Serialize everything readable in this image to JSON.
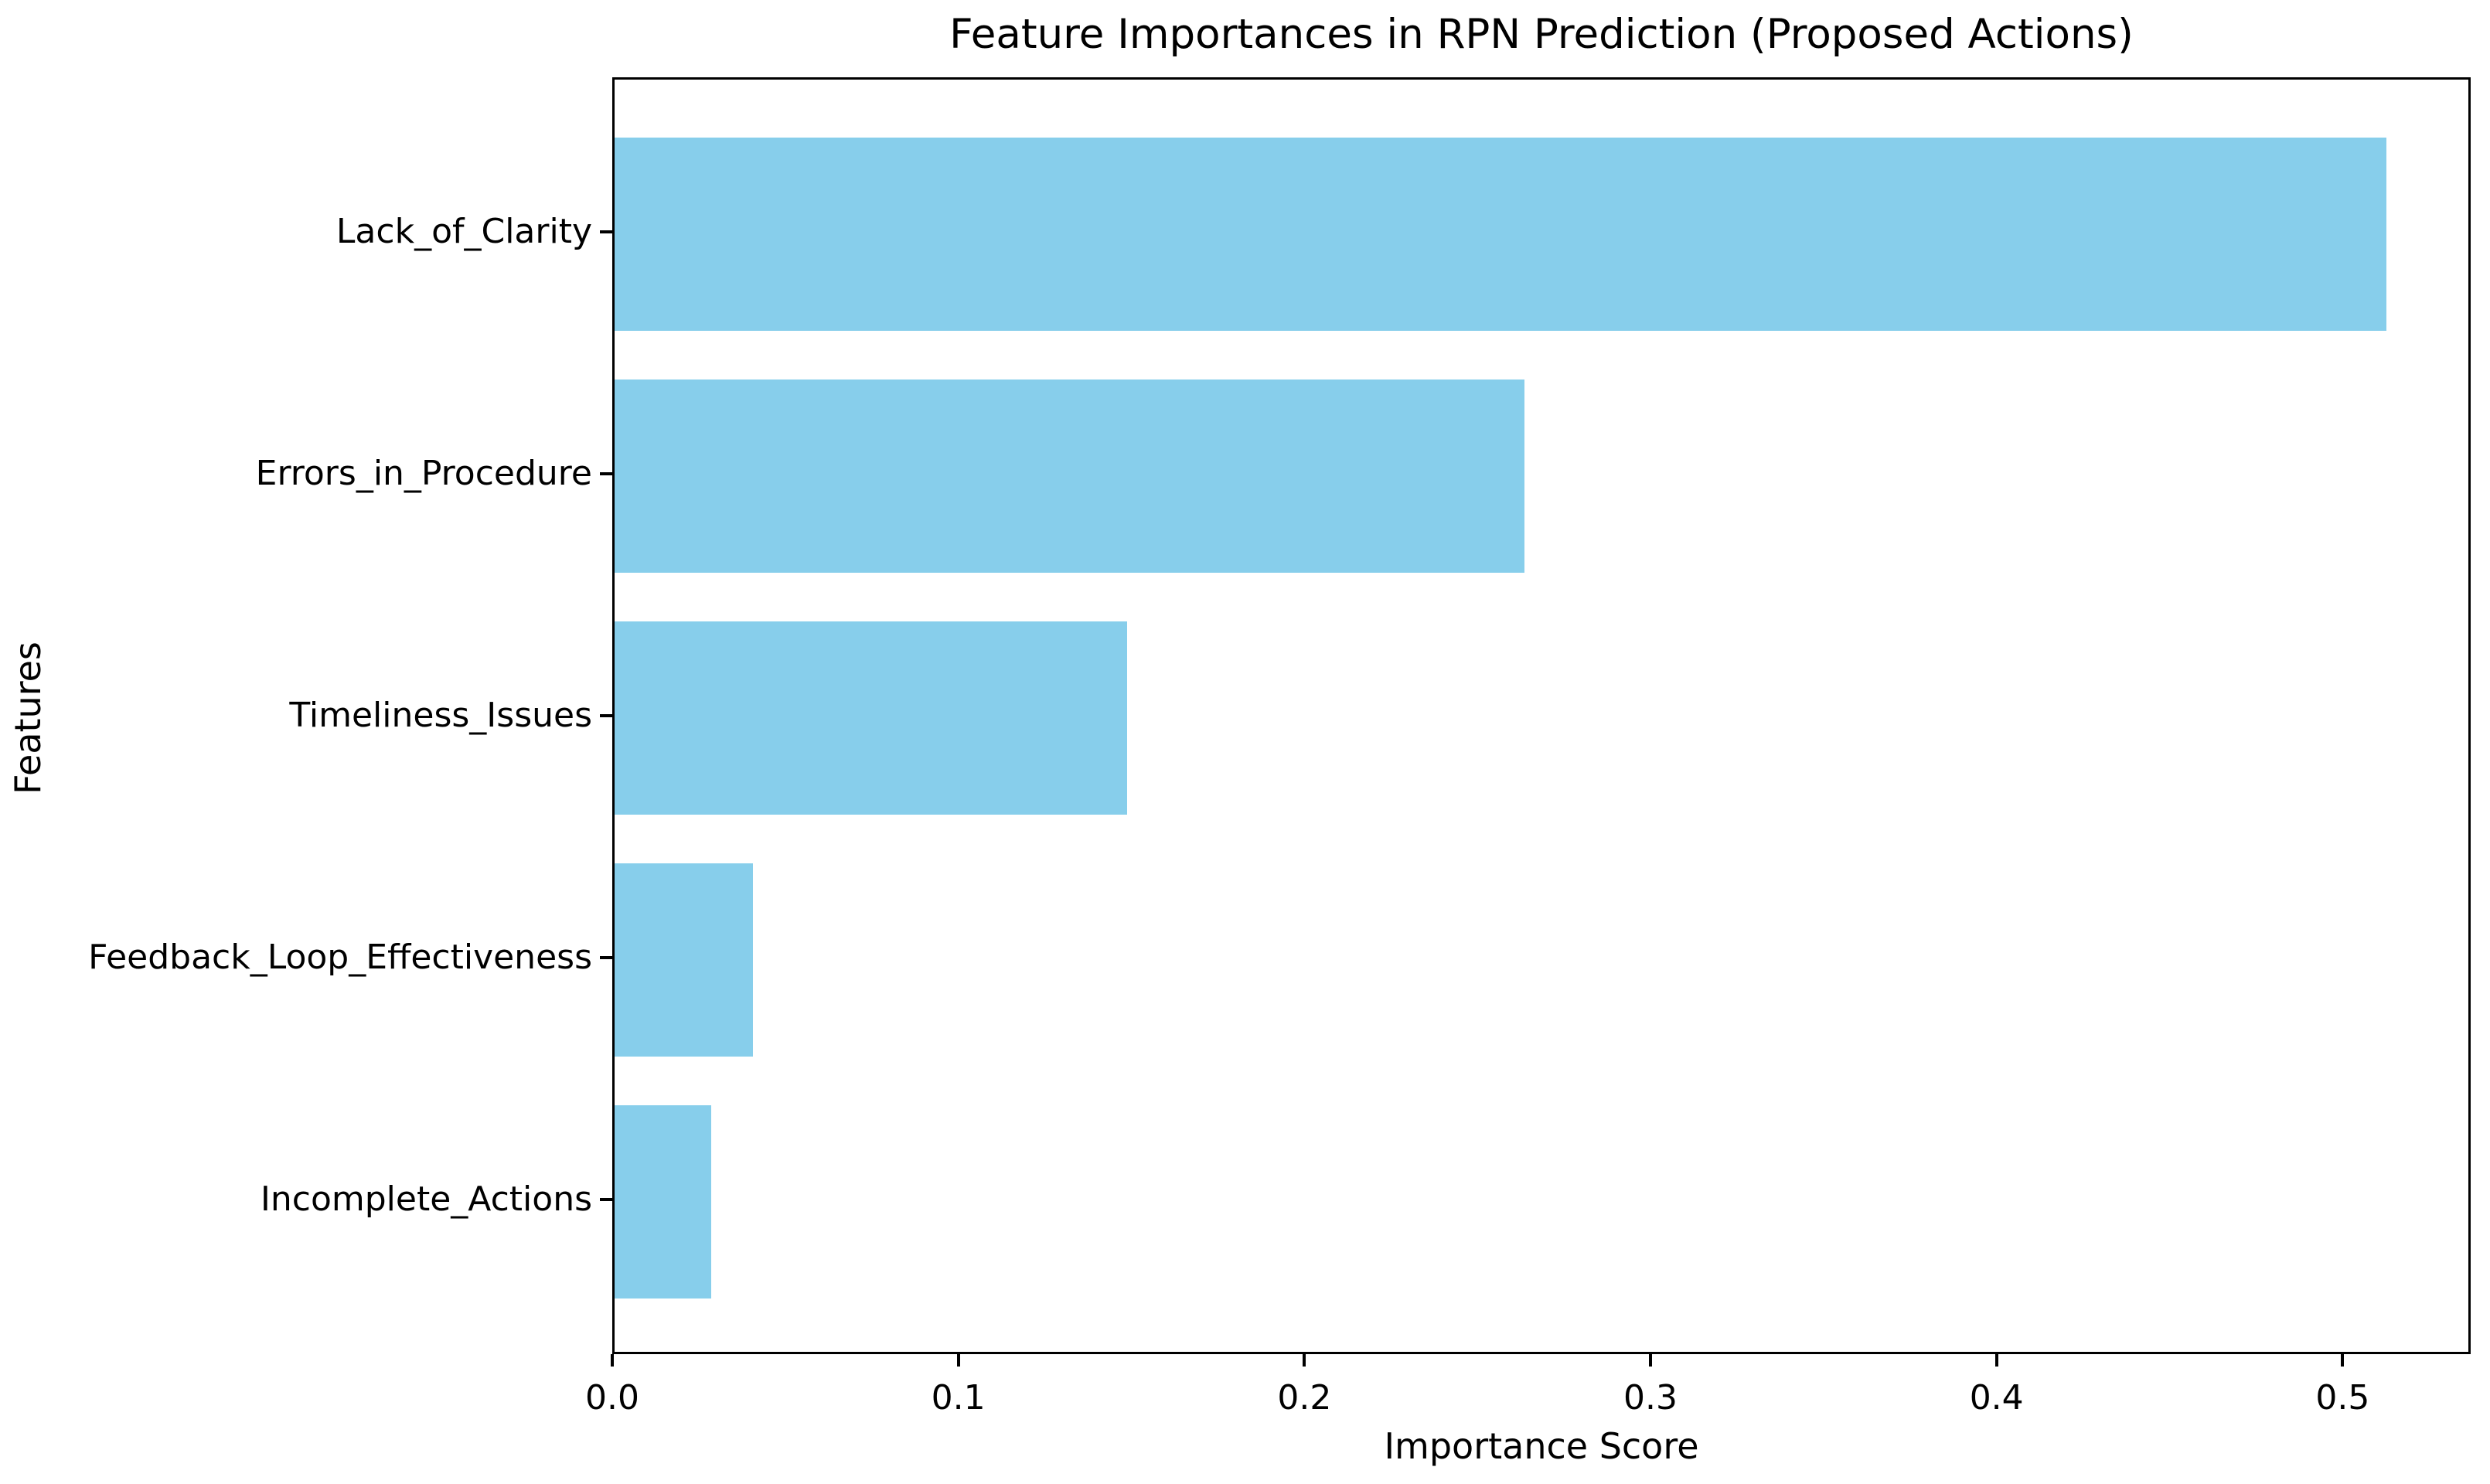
{
  "chart_data": {
    "type": "bar",
    "orientation": "horizontal",
    "title": "Feature Importances in RPN Prediction (Proposed Actions)",
    "xlabel": "Importance Score",
    "ylabel": "Features",
    "categories": [
      "Lack_of_Clarity",
      "Errors_in_Procedure",
      "Timeliness_Issues",
      "Feedback_Loop_Effectiveness",
      "Incomplete_Actions"
    ],
    "values": [
      0.512,
      0.263,
      0.148,
      0.04,
      0.028
    ],
    "xticks": [
      0.0,
      0.1,
      0.2,
      0.3,
      0.4,
      0.5
    ],
    "xtick_labels": [
      "0.0",
      "0.1",
      "0.2",
      "0.3",
      "0.4",
      "0.5"
    ],
    "xlim": [
      0,
      0.537
    ],
    "bar_color": "#87CEEB",
    "grid": false,
    "legend_position": "none"
  }
}
